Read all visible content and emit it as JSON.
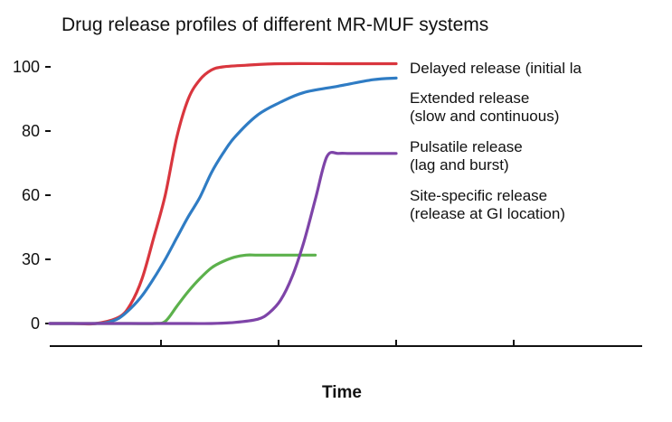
{
  "chart_data": {
    "type": "line",
    "title": "Drug release profiles of different MR-MUF systems",
    "xlabel": "Time",
    "ylabel": "",
    "yticks": [
      "100",
      "80",
      "60",
      "30",
      "0"
    ],
    "ytick_values": [
      100,
      80,
      60,
      30,
      0
    ],
    "xticks_labeled": false,
    "grid": false,
    "legend_placement": "right, text labels beside curves",
    "series": [
      {
        "name": "Delayed release (initial lag)",
        "color": "#d9363e",
        "x": [
          0,
          2,
          4,
          6,
          7,
          8,
          9,
          10,
          11,
          12,
          13,
          14,
          15,
          17,
          20,
          25,
          30
        ],
        "y": [
          0,
          0,
          0,
          3,
          9,
          21,
          40,
          60,
          78,
          90,
          96,
          99,
          100,
          100.5,
          101,
          101,
          101
        ]
      },
      {
        "name": "Extended release (slow and continuous)",
        "color": "#2f7cc4",
        "x": [
          0,
          2,
          4,
          5,
          6,
          7,
          8,
          9,
          10,
          11,
          12,
          13,
          14,
          15,
          16,
          18,
          20,
          22,
          25,
          28,
          30
        ],
        "y": [
          0,
          0,
          0,
          0.5,
          2.5,
          7,
          13,
          21,
          30,
          40,
          50,
          59,
          67,
          73,
          78,
          85,
          89,
          92,
          94,
          96,
          96.5
        ]
      },
      {
        "name": "Site-specific release (release at GI location)",
        "color": "#5cb14c",
        "x": [
          0,
          4,
          7,
          9,
          10,
          11,
          12,
          13,
          14,
          15,
          16,
          17,
          18,
          20,
          22,
          23
        ],
        "y": [
          0,
          0,
          0,
          0,
          1,
          8,
          15,
          21,
          26,
          29,
          31,
          32,
          32,
          32,
          32,
          32
        ]
      },
      {
        "name": "Pulsatile release (lag and burst)",
        "color": "#7e44a8",
        "x": [
          0,
          4,
          8,
          12,
          14,
          16,
          18,
          19,
          20,
          21,
          22,
          23,
          24,
          25,
          26,
          28,
          30
        ],
        "y": [
          0,
          0,
          0,
          0,
          0,
          0.5,
          2,
          5,
          11,
          22,
          38,
          58,
          72,
          73,
          73,
          73,
          73
        ]
      }
    ],
    "legend": [
      {
        "line1": "Delayed release (initial la",
        "line2": ""
      },
      {
        "line1": "Extended release",
        "line2": "(slow and continuous)"
      },
      {
        "line1": "Pulsatile release",
        "line2": "(lag and burst)"
      },
      {
        "line1": "Site-specific release",
        "line2": "(release at GI location)"
      }
    ]
  }
}
